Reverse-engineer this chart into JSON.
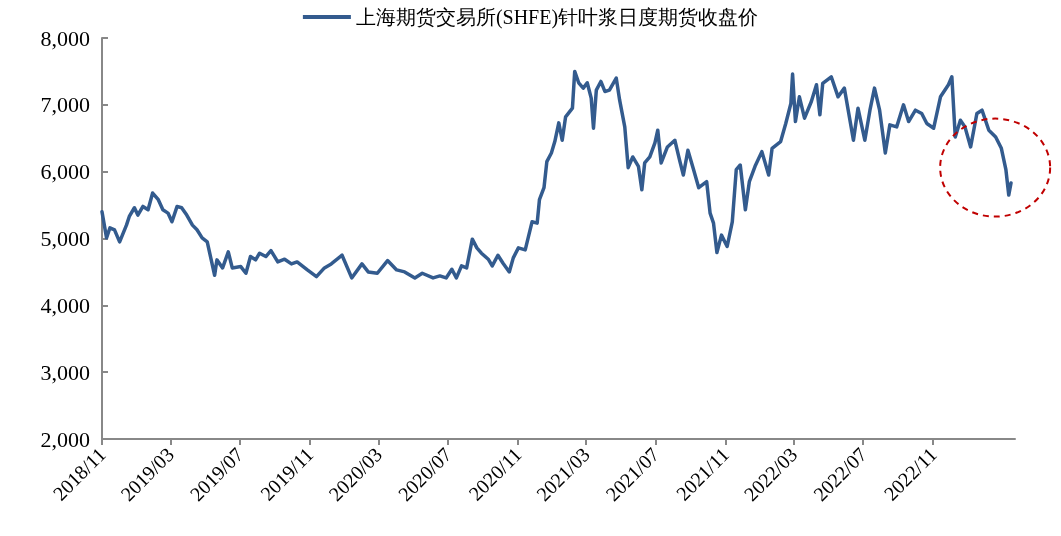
{
  "chart_data": {
    "type": "line",
    "x": [
      "2018-11-01",
      "2018-11-09",
      "2018-11-15",
      "2018-11-23",
      "2018-12-02",
      "2018-12-14",
      "2018-12-19",
      "2018-12-28",
      "2019-01-03",
      "2019-01-12",
      "2019-01-21",
      "2019-01-29",
      "2019-02-08",
      "2019-02-16",
      "2019-02-25",
      "2019-03-04",
      "2019-03-13",
      "2019-03-21",
      "2019-03-30",
      "2019-04-09",
      "2019-04-17",
      "2019-04-26",
      "2019-05-05",
      "2019-05-12",
      "2019-05-18",
      "2019-05-22",
      "2019-06-01",
      "2019-06-11",
      "2019-06-18",
      "2019-07-03",
      "2019-07-12",
      "2019-07-20",
      "2019-07-29",
      "2019-08-05",
      "2019-08-16",
      "2019-08-25",
      "2019-09-06",
      "2019-09-18",
      "2019-09-30",
      "2019-10-10",
      "2019-10-28",
      "2019-11-13",
      "2019-11-27",
      "2019-12-09",
      "2019-12-28",
      "2020-01-14",
      "2020-02-01",
      "2020-02-12",
      "2020-02-28",
      "2020-03-17",
      "2020-04-02",
      "2020-04-16",
      "2020-05-04",
      "2020-05-17",
      "2020-06-05",
      "2020-06-17",
      "2020-06-28",
      "2020-07-08",
      "2020-07-16",
      "2020-07-25",
      "2020-08-03",
      "2020-08-13",
      "2020-08-21",
      "2020-08-29",
      "2020-09-10",
      "2020-09-17",
      "2020-09-27",
      "2020-10-06",
      "2020-10-17",
      "2020-10-24",
      "2020-11-02",
      "2020-11-14",
      "2020-11-26",
      "2020-12-05",
      "2020-12-09",
      "2020-12-17",
      "2020-12-22",
      "2020-12-30",
      "2021-01-05",
      "2021-01-12",
      "2021-01-18",
      "2021-01-24",
      "2021-02-05",
      "2021-02-09",
      "2021-02-16",
      "2021-02-24",
      "2021-03-03",
      "2021-03-10",
      "2021-03-14",
      "2021-03-19",
      "2021-03-27",
      "2021-04-03",
      "2021-04-11",
      "2021-04-23",
      "2021-04-29",
      "2021-05-08",
      "2021-05-14",
      "2021-05-22",
      "2021-06-01",
      "2021-06-07",
      "2021-06-12",
      "2021-06-21",
      "2021-06-30",
      "2021-07-05",
      "2021-07-11",
      "2021-07-22",
      "2021-08-04",
      "2021-08-13",
      "2021-08-19",
      "2021-08-27",
      "2021-09-06",
      "2021-09-15",
      "2021-09-29",
      "2021-10-05",
      "2021-10-11",
      "2021-10-17",
      "2021-10-25",
      "2021-11-04",
      "2021-11-13",
      "2021-11-20",
      "2021-11-27",
      "2021-12-06",
      "2021-12-13",
      "2021-12-23",
      "2022-01-04",
      "2022-01-16",
      "2022-01-22",
      "2022-02-06",
      "2022-02-15",
      "2022-02-24",
      "2022-02-27",
      "2022-03-04",
      "2022-03-11",
      "2022-03-20",
      "2022-04-01",
      "2022-04-10",
      "2022-04-16",
      "2022-04-21",
      "2022-05-06",
      "2022-05-18",
      "2022-05-29",
      "2022-06-14",
      "2022-06-22",
      "2022-07-04",
      "2022-07-13",
      "2022-07-21",
      "2022-07-30",
      "2022-08-09",
      "2022-08-17",
      "2022-08-29",
      "2022-09-10",
      "2022-09-19",
      "2022-10-01",
      "2022-10-12",
      "2022-10-21",
      "2022-11-02",
      "2022-11-14",
      "2022-11-28",
      "2022-12-04",
      "2022-12-10",
      "2022-12-19",
      "2022-12-27",
      "2023-01-06",
      "2023-01-17",
      "2023-01-26",
      "2023-02-07",
      "2023-02-19",
      "2023-03-01",
      "2023-03-09",
      "2023-03-14",
      "2023-03-18"
    ],
    "series": [
      {
        "name": "上海期货交易所(SHFE)针叶浆日度期货收盘价",
        "color": "#335b8e",
        "values": [
          5400,
          5010,
          5160,
          5130,
          4950,
          5200,
          5330,
          5460,
          5350,
          5480,
          5430,
          5680,
          5580,
          5430,
          5380,
          5250,
          5480,
          5460,
          5350,
          5200,
          5130,
          5010,
          4950,
          4680,
          4450,
          4680,
          4560,
          4800,
          4560,
          4580,
          4480,
          4730,
          4680,
          4780,
          4730,
          4820,
          4650,
          4690,
          4620,
          4650,
          4530,
          4430,
          4560,
          4620,
          4750,
          4410,
          4620,
          4500,
          4480,
          4670,
          4530,
          4500,
          4410,
          4480,
          4410,
          4440,
          4410,
          4540,
          4410,
          4590,
          4560,
          4990,
          4860,
          4780,
          4690,
          4590,
          4750,
          4630,
          4500,
          4710,
          4860,
          4830,
          5250,
          5230,
          5580,
          5760,
          6150,
          6280,
          6450,
          6730,
          6470,
          6820,
          6950,
          7500,
          7330,
          7250,
          7330,
          7100,
          6650,
          7220,
          7350,
          7200,
          7220,
          7400,
          7070,
          6670,
          6060,
          6220,
          6080,
          5730,
          6130,
          6220,
          6430,
          6620,
          6130,
          6370,
          6470,
          6150,
          5950,
          6320,
          6030,
          5760,
          5850,
          5380,
          5230,
          4790,
          5050,
          4880,
          5250,
          6030,
          6100,
          5430,
          5850,
          6080,
          6300,
          5950,
          6350,
          6450,
          6720,
          7020,
          7460,
          6750,
          7120,
          6800,
          7050,
          7300,
          6850,
          7320,
          7420,
          7120,
          7250,
          6470,
          6950,
          6470,
          6920,
          7250,
          6920,
          6280,
          6700,
          6670,
          7000,
          6750,
          6920,
          6870,
          6720,
          6650,
          7120,
          7300,
          7420,
          6520,
          6770,
          6670,
          6370,
          6870,
          6920,
          6620,
          6520,
          6350,
          6030,
          5650,
          5830
        ]
      }
    ],
    "xlim": [
      "2018-11-01",
      "2023-03-25"
    ],
    "xticks": [
      {
        "value": "2018-11-01",
        "label": "2018/11"
      },
      {
        "value": "2019-03-01",
        "label": "2019/03"
      },
      {
        "value": "2019-07-01",
        "label": "2019/07"
      },
      {
        "value": "2019-11-01",
        "label": "2019/11"
      },
      {
        "value": "2020-03-01",
        "label": "2020/03"
      },
      {
        "value": "2020-07-01",
        "label": "2020/07"
      },
      {
        "value": "2020-11-01",
        "label": "2020/11"
      },
      {
        "value": "2021-03-01",
        "label": "2021/03"
      },
      {
        "value": "2021-07-01",
        "label": "2021/07"
      },
      {
        "value": "2021-11-01",
        "label": "2021/11"
      },
      {
        "value": "2022-03-01",
        "label": "2022/03"
      },
      {
        "value": "2022-07-01",
        "label": "2022/07"
      },
      {
        "value": "2022-11-01",
        "label": "2022/11"
      }
    ],
    "ylim": [
      2000,
      8000
    ],
    "yticks": [
      {
        "value": 2000,
        "label": "2,000"
      },
      {
        "value": 3000,
        "label": "3,000"
      },
      {
        "value": 4000,
        "label": "4,000"
      },
      {
        "value": 5000,
        "label": "5,000"
      },
      {
        "value": 6000,
        "label": "6,000"
      },
      {
        "value": 7000,
        "label": "7,000"
      },
      {
        "value": 8000,
        "label": "8,000"
      }
    ],
    "grid": false,
    "legend": "top",
    "marker": "none",
    "line_style": "solid"
  }
}
